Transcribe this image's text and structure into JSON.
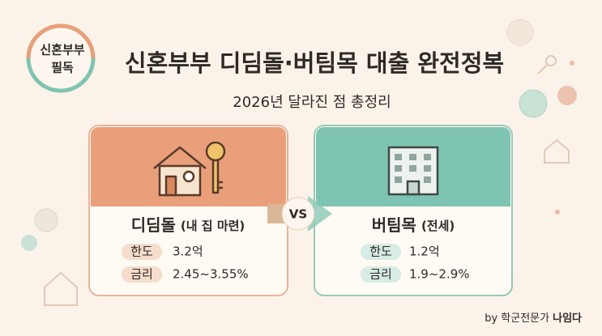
{
  "badge": {
    "lines": [
      "신혼부부",
      "필독"
    ]
  },
  "title": "신혼부부 디딤돌·버팀목 대출 완전정복",
  "subtitle": "2026년 달라진 점 총정리",
  "cards": [
    {
      "name": "디딤돌",
      "note": "(내 집 마련)",
      "rows": [
        [
          "한도",
          "3.2억"
        ],
        [
          "금리",
          "2.45~3.55%"
        ]
      ]
    },
    {
      "name": "버팀목",
      "note": "(전세)",
      "rows": [
        [
          "한도",
          "1.2억"
        ],
        [
          "금리",
          "1.9~2.9%"
        ]
      ]
    }
  ],
  "vs": "VS",
  "footer": {
    "prefix": "by 학군전문가",
    "author": "나임다"
  }
}
